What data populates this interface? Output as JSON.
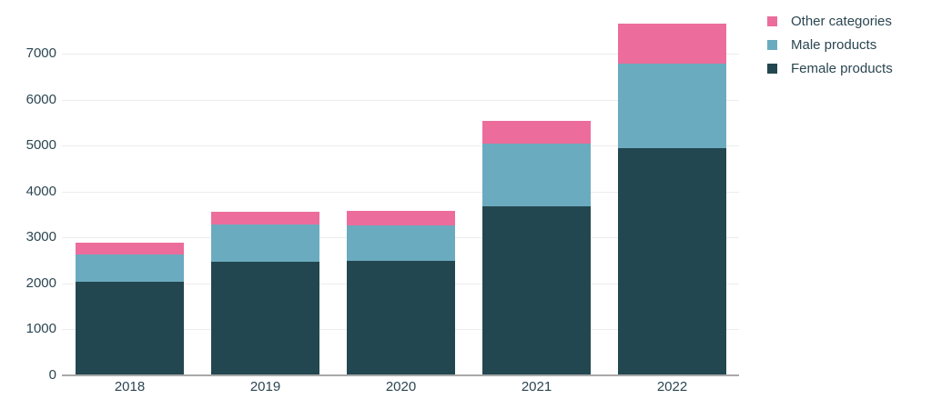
{
  "chart_data": {
    "type": "bar",
    "stacked": true,
    "title": "",
    "categories": [
      "2018",
      "2019",
      "2020",
      "2021",
      "2022"
    ],
    "series": [
      {
        "name": "Female products",
        "color": "#234750",
        "values": [
          2030,
          2470,
          2490,
          3680,
          4945
        ]
      },
      {
        "name": "Male products",
        "color": "#6babbf",
        "values": [
          600,
          810,
          775,
          1365,
          1835
        ]
      },
      {
        "name": "Other categories",
        "color": "#ec6d9c",
        "values": [
          260,
          275,
          320,
          500,
          875
        ]
      }
    ],
    "totals": [
      2890,
      3555,
      3585,
      5545,
      7655
    ],
    "y_axis": {
      "min": 0,
      "max": 7000,
      "tick_step": 1000,
      "tick_labels": [
        "0",
        "1000",
        "2000",
        "3000",
        "4000",
        "5000",
        "6000",
        "7000"
      ]
    },
    "x_axis": {
      "tick_labels": [
        "2018",
        "2019",
        "2020",
        "2021",
        "2022"
      ]
    },
    "legend": {
      "position": "top-right",
      "items": [
        {
          "label": "Other categories",
          "color": "#ec6d9c"
        },
        {
          "label": "Male products",
          "color": "#6babbf"
        },
        {
          "label": "Female products",
          "color": "#234750"
        }
      ]
    },
    "grid": "horizontal",
    "colors": {
      "grid": "#ececec",
      "axis_line": "#a8a8a8",
      "text": "#2b4651",
      "background": "#ffffff"
    }
  }
}
